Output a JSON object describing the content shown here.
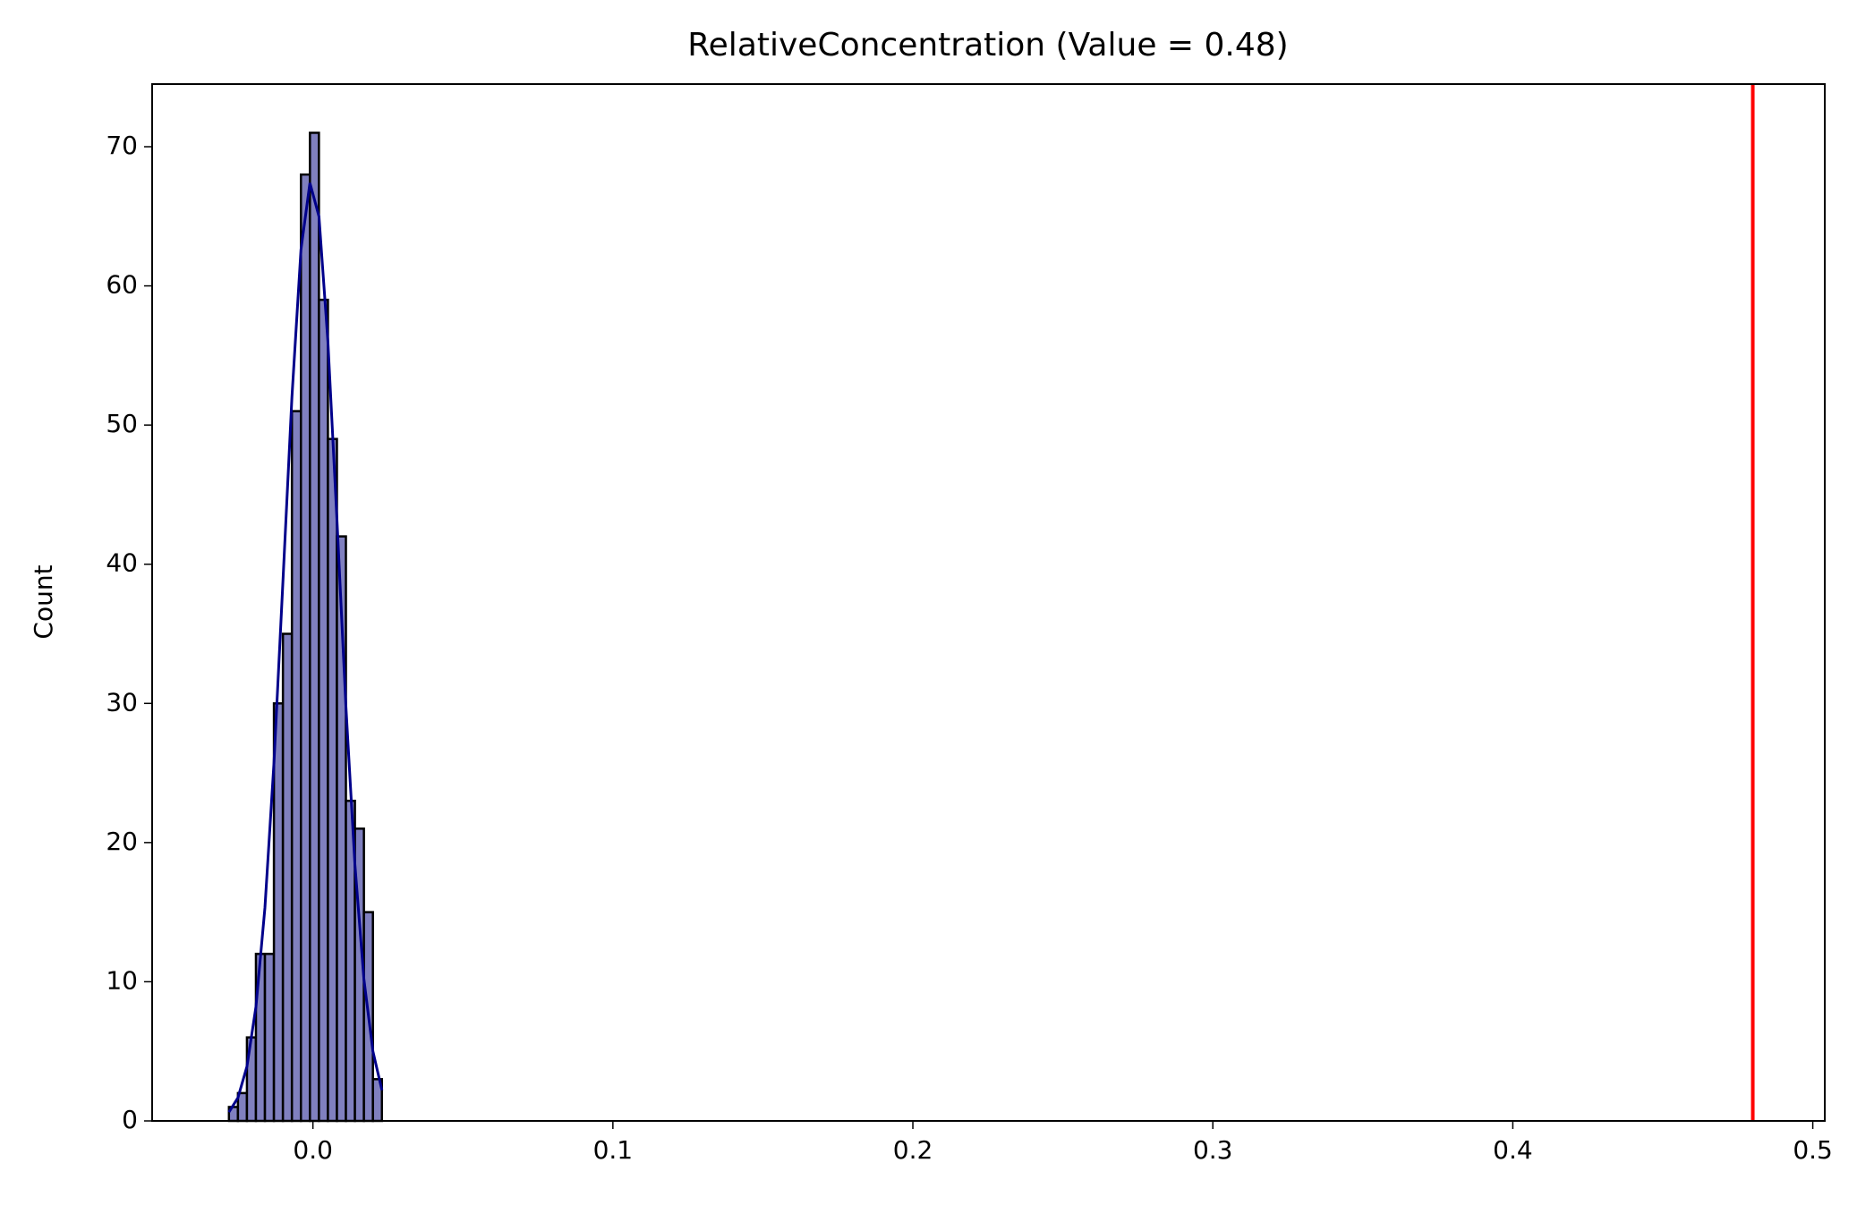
{
  "chart_data": {
    "type": "histogram",
    "title": "RelativeConcentration (Value = 0.48)",
    "ylabel": "Count",
    "bins": [
      -0.028,
      -0.025,
      -0.022,
      -0.019,
      -0.016,
      -0.013,
      -0.01,
      -0.007,
      -0.004,
      -0.001,
      0.002,
      0.005,
      0.008,
      0.011,
      0.014,
      0.017,
      0.02,
      0.023
    ],
    "counts": [
      1,
      2,
      6,
      12,
      12,
      30,
      35,
      51,
      68,
      71,
      59,
      49,
      42,
      23,
      21,
      15,
      3
    ],
    "color": "#8080bf",
    "edgecolor": "#000000",
    "kde": {
      "color": "#00008b",
      "x": [
        -0.028,
        -0.025,
        -0.022,
        -0.019,
        -0.016,
        -0.013,
        -0.01,
        -0.007,
        -0.004,
        -0.001,
        0.002,
        0.005,
        0.008,
        0.011,
        0.014,
        0.017,
        0.02,
        0.023
      ],
      "values": [
        0.63,
        1.67,
        3.9,
        8.2,
        15.3,
        25.7,
        38.7,
        52.0,
        62.6,
        67.4,
        65.0,
        56.0,
        43.2,
        29.8,
        18.4,
        10.2,
        5.0,
        2.2
      ]
    },
    "vline": {
      "value": 0.48,
      "color": "#ff0000"
    },
    "xlim": [
      -0.0536,
      0.504
    ],
    "ylim": [
      0,
      74.5
    ],
    "xticks": [
      {
        "value": 0,
        "label": "0.0"
      },
      0.1,
      0.2,
      0.3,
      0.4,
      0.5
    ],
    "yticks": [
      0,
      10,
      20,
      30,
      40,
      50,
      60,
      70
    ]
  }
}
